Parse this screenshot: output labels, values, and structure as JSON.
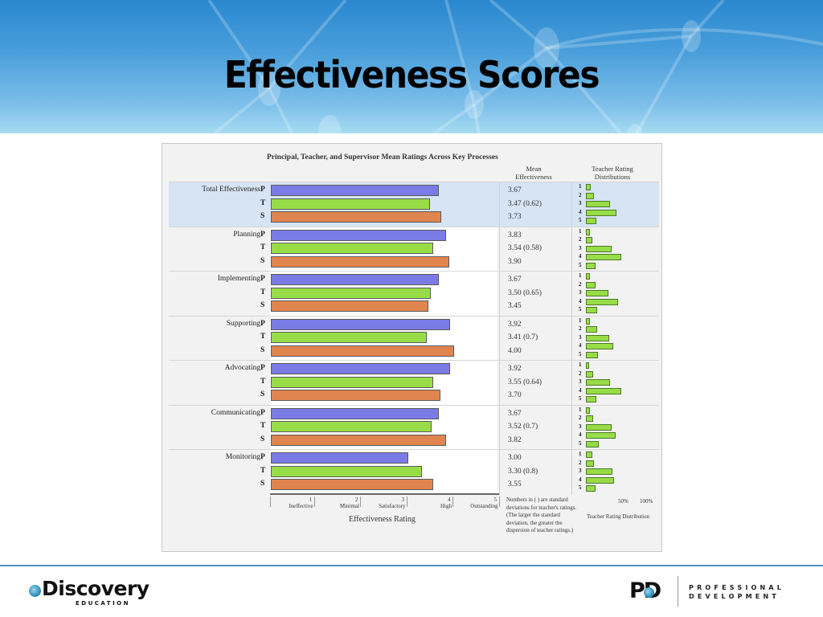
{
  "slide": {
    "title": "Effectiveness Scores"
  },
  "chart_data": {
    "type": "bar",
    "title": "Principal, Teacher, and Supervisor Mean Ratings Across Key Processes",
    "xlabel": "Effectiveness Rating",
    "ylabel": "",
    "xlim": [
      0,
      5
    ],
    "orientation": "horizontal",
    "categories": [
      "Total Effectiveness",
      "Planning",
      "Implementing",
      "Supporting",
      "Advocating",
      "Communicating",
      "Monitoring"
    ],
    "series": [
      {
        "name": "P",
        "label": "Principal",
        "color": "#7b7be6",
        "values": [
          3.67,
          3.83,
          3.67,
          3.92,
          3.92,
          3.67,
          3.0
        ]
      },
      {
        "name": "T",
        "label": "Teacher",
        "color": "#98dd48",
        "values": [
          3.47,
          3.54,
          3.5,
          3.41,
          3.55,
          3.52,
          3.3
        ]
      },
      {
        "name": "S",
        "label": "Supervisor",
        "color": "#e0854f",
        "values": [
          3.73,
          3.9,
          3.45,
          4.0,
          3.7,
          3.82,
          3.55
        ]
      }
    ],
    "teacher_sd": [
      0.62,
      0.58,
      0.65,
      0.7,
      0.64,
      0.7,
      0.8
    ],
    "x_ticks": [
      {
        "value": 1,
        "label": "Ineffective"
      },
      {
        "value": 2,
        "label": "Minimal"
      },
      {
        "value": 3,
        "label": "Satisfactory"
      },
      {
        "value": 4,
        "label": "High"
      },
      {
        "value": 5,
        "label": "Outstanding"
      }
    ],
    "teacher_rating_distributions": {
      "rating_levels": [
        1,
        2,
        3,
        4,
        5
      ],
      "unit": "percent (approx.)",
      "scale_ticks": [
        "50%",
        "100%"
      ],
      "values": [
        [
          7,
          11,
          33,
          41,
          14
        ],
        [
          5,
          9,
          35,
          48,
          13
        ],
        [
          5,
          13,
          30,
          43,
          15
        ],
        [
          5,
          15,
          32,
          37,
          16
        ],
        [
          4,
          10,
          33,
          48,
          14
        ],
        [
          5,
          10,
          35,
          40,
          17
        ],
        [
          9,
          11,
          36,
          38,
          13
        ]
      ]
    },
    "grid": false,
    "legend": "none (row letters P/T/S)"
  },
  "chart": {
    "title": "Principal, Teacher, and Supervisor Mean Ratings Across Key Processes",
    "col_mean_header_1": "Mean",
    "col_mean_header_2": "Effectiveness",
    "col_dist_header_1": "Teacher Rating",
    "col_dist_header_2": "Distributions",
    "row_letters": [
      "P",
      "T",
      "S"
    ],
    "dist_levels": [
      "1",
      "2",
      "3",
      "4",
      "5"
    ],
    "groups": [
      {
        "label": "Total Effectiveness",
        "means": [
          "3.67",
          "3.47 (0.62)",
          "3.73"
        ]
      },
      {
        "label": "Planning",
        "means": [
          "3.83",
          "3.54 (0.58)",
          "3.90"
        ]
      },
      {
        "label": "Implementing",
        "means": [
          "3.67",
          "3.50 (0.65)",
          "3.45"
        ]
      },
      {
        "label": "Supporting",
        "means": [
          "3.92",
          "3.41 (0.7)",
          "4.00"
        ]
      },
      {
        "label": "Advocating",
        "means": [
          "3.92",
          "3.55 (0.64)",
          "3.70"
        ]
      },
      {
        "label": "Communicating",
        "means": [
          "3.67",
          "3.52 (0.7)",
          "3.82"
        ]
      },
      {
        "label": "Monitoring",
        "means": [
          "3.00",
          "3.30 (0.8)",
          "3.55"
        ]
      }
    ],
    "axis": {
      "title": "Effectiveness Rating",
      "ticks": [
        {
          "num": "1",
          "label": "Ineffective"
        },
        {
          "num": "2",
          "label": "Minimal"
        },
        {
          "num": "3",
          "label": "Satisfactory"
        },
        {
          "num": "4",
          "label": "High"
        },
        {
          "num": "5",
          "label": "Outstanding"
        }
      ]
    },
    "note": "Numbers in ( ) are standard deviations for teacher's ratings. (The larger the standard deviation, the greater the dispersion of teacher ratings.)",
    "dist_footer": {
      "tick_50": "50%",
      "tick_100": "100%",
      "title": "Teacher Rating Distribution"
    }
  },
  "footer": {
    "left_logo_word": "Discovery",
    "left_logo_sub": "EDUCATION",
    "right_logo_letters": "PD",
    "right_logo_line1": "PROFESSIONAL",
    "right_logo_line2": "DEVELOPMENT"
  },
  "colors": {
    "principal": "#7b7be6",
    "teacher": "#98dd48",
    "supervisor": "#e0854f",
    "highlight_row": "#d6e4f4",
    "header_blue": "#2a88cf"
  }
}
